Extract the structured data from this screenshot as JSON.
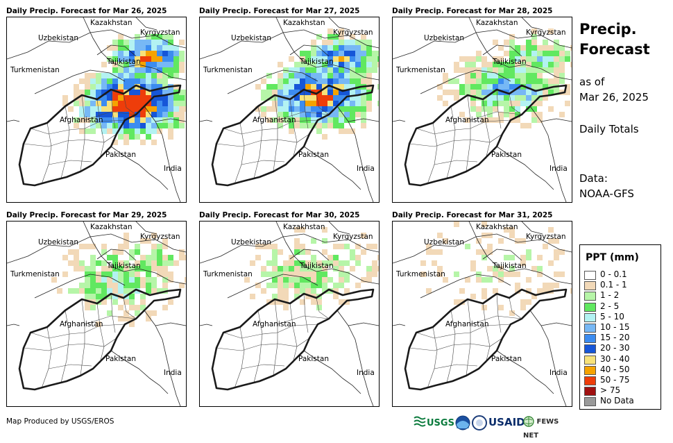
{
  "panels": [
    {
      "title": "Daily Precip. Forecast for Mar 26, 2025",
      "intensity": 1.0
    },
    {
      "title": "Daily Precip. Forecast for Mar 27, 2025",
      "intensity": 0.8
    },
    {
      "title": "Daily Precip. Forecast for Mar 28, 2025",
      "intensity": 0.45
    },
    {
      "title": "Daily Precip. Forecast for Mar 29, 2025",
      "intensity": 0.3
    },
    {
      "title": "Daily Precip. Forecast for Mar 30, 2025",
      "intensity": 0.25
    },
    {
      "title": "Daily Precip. Forecast for Mar 31, 2025",
      "intensity": 0.12
    }
  ],
  "country_labels": {
    "kazakhstan": "Kazakhstan",
    "kyrgyzstan": "Kyrgyzstan",
    "uzbekistan": "Uzbekistan",
    "tajikistan": "Tajikistan",
    "turkmenistan": "Turkmenistan",
    "afghanistan": "Afghanistan",
    "pakistan": "Pakistan",
    "india": "India"
  },
  "sidebar": {
    "title_line1": "Precip.",
    "title_line2": "Forecast",
    "asof_line1": "as of",
    "asof_line2": "Mar 26, 2025",
    "totals": "Daily Totals",
    "data_line1": "Data:",
    "data_line2": "NOAA-GFS"
  },
  "legend": {
    "title": "PPT (mm)",
    "items": [
      {
        "label": "0 - 0.1",
        "color": "#ffffff"
      },
      {
        "label": "0.1 - 1",
        "color": "#f2d9b8"
      },
      {
        "label": "1 - 2",
        "color": "#b6f5a8"
      },
      {
        "label": "2 - 5",
        "color": "#61e860"
      },
      {
        "label": "5 - 10",
        "color": "#b3f2f2"
      },
      {
        "label": "10 - 15",
        "color": "#77b8f5"
      },
      {
        "label": "15 - 20",
        "color": "#3c8cf0"
      },
      {
        "label": "20 - 30",
        "color": "#1656d8"
      },
      {
        "label": "30 - 40",
        "color": "#f7e27a"
      },
      {
        "label": "40 - 50",
        "color": "#f5a300"
      },
      {
        "label": "50 - 75",
        "color": "#ee3d0a"
      },
      {
        "label": "> 75",
        "color": "#a01010"
      },
      {
        "label": "No Data",
        "color": "#9a9a9a"
      }
    ]
  },
  "footer": {
    "credit": "Map Produced by USGS/EROS",
    "usgs": "USGS",
    "usaid": "USAID",
    "fewsnet": "FEWS NET"
  }
}
